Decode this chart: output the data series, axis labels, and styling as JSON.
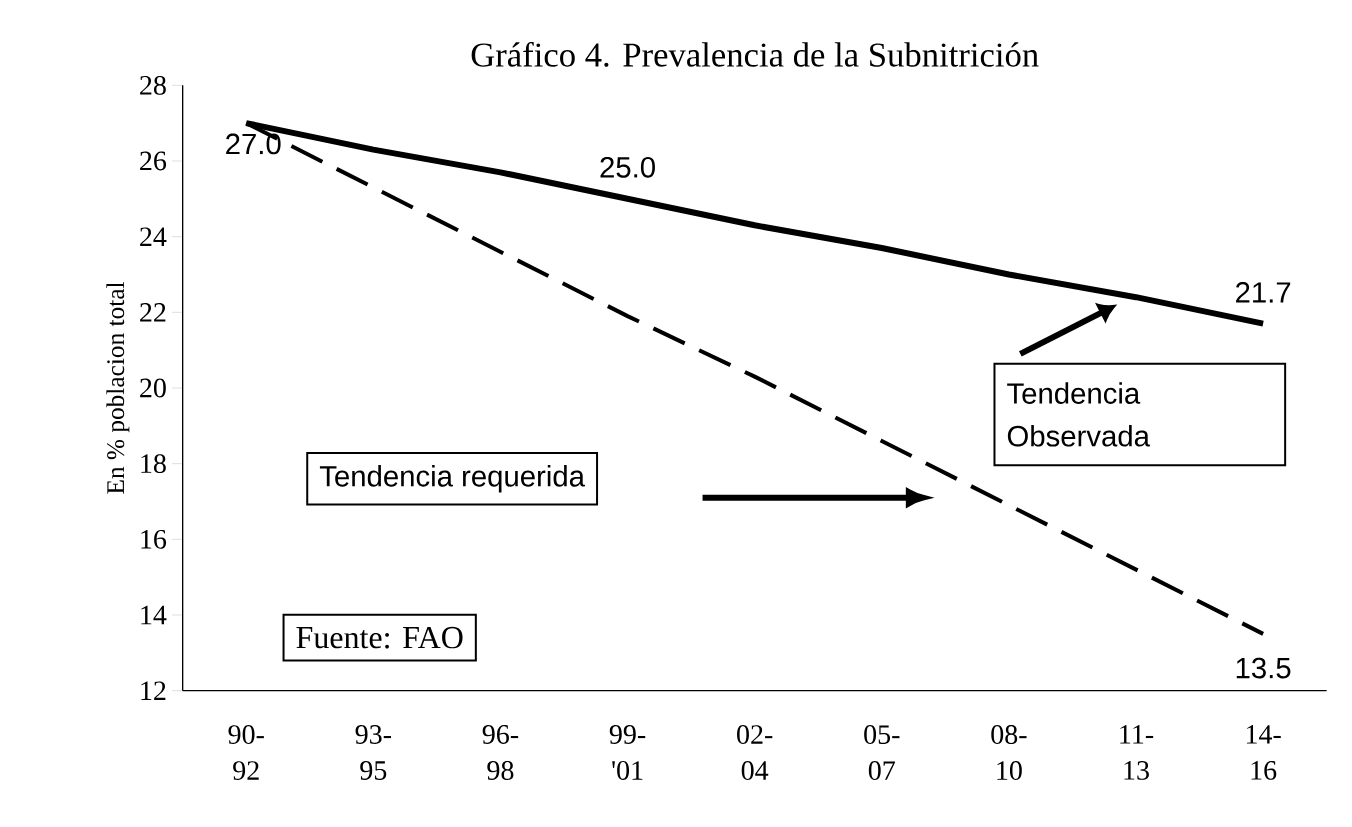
{
  "chart_data": {
    "type": "line",
    "title": "Gráfico 4. Prevalencia de la Subnitrición",
    "ylabel": "En % poblacion total",
    "categories": [
      "90- 92",
      "93- 95",
      "96- 98",
      "99- '01",
      "02- 04",
      "05- 07",
      "08- 10",
      "11- 13",
      "14- 16"
    ],
    "series": [
      {
        "color": "#000000",
        "line_style": "solid",
        "values": [
          27.0,
          26.3,
          25.7,
          25.0,
          24.3,
          23.7,
          23.0,
          22.4,
          21.7
        ],
        "value_labels": [
          "27.0",
          null,
          null,
          "25.0",
          null,
          null,
          null,
          null,
          "21.7"
        ]
      },
      {
        "color": "#000000",
        "line_style": "dashed",
        "values": [
          27.0,
          25.3,
          23.6,
          21.9,
          20.3,
          18.6,
          16.9,
          15.2,
          13.5
        ],
        "value_labels": [
          null,
          null,
          null,
          null,
          null,
          null,
          null,
          null,
          "13.5"
        ]
      }
    ],
    "ylim": [
      12,
      28
    ],
    "yticks": [
      12,
      14,
      16,
      18,
      20,
      22,
      24,
      26,
      28
    ],
    "grid": false,
    "marker": "none",
    "annotations": [
      "Tendencia Observada",
      "Tendencia requerida",
      "Fuente: FAO"
    ]
  }
}
